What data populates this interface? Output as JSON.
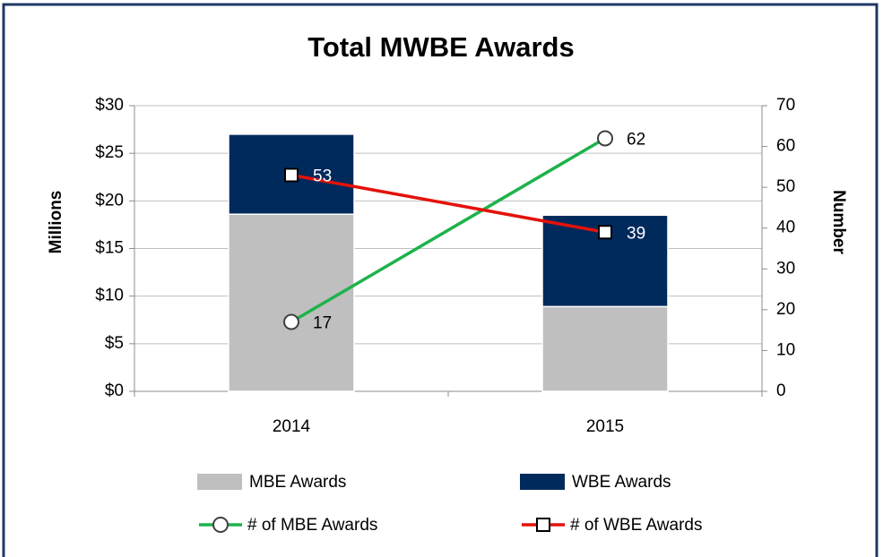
{
  "chart_data": {
    "type": "combo",
    "title": "Total MWBE Awards",
    "categories": [
      "2014",
      "2015"
    ],
    "stacked": true,
    "ylabel": "Millions",
    "y2label": "Number",
    "ylim": [
      0,
      30
    ],
    "yticks": [
      {
        "value": 0,
        "label": "$0"
      },
      {
        "value": 5,
        "label": "$5"
      },
      {
        "value": 10,
        "label": "$10"
      },
      {
        "value": 15,
        "label": "$15"
      },
      {
        "value": 20,
        "label": "$20"
      },
      {
        "value": 25,
        "label": "$25"
      },
      {
        "value": 30,
        "label": "$30"
      }
    ],
    "y2lim": [
      0,
      70
    ],
    "y2ticks": [
      0,
      10,
      20,
      30,
      40,
      50,
      60,
      70
    ],
    "grid": true,
    "legend": "bottom",
    "series": [
      {
        "name": "MBE Awards",
        "type": "bar",
        "color": "#bfbfbf",
        "values": [
          18.6,
          8.9
        ]
      },
      {
        "name": "WBE Awards",
        "type": "bar",
        "color": "#002a5c",
        "values": [
          8.4,
          9.6
        ]
      },
      {
        "name": "# of MBE Awards",
        "type": "line",
        "axis": "y2",
        "marker": "circle",
        "color": "#1db34a",
        "values": [
          17,
          62
        ]
      },
      {
        "name": "# of WBE Awards",
        "type": "line",
        "axis": "y2",
        "marker": "square",
        "color": "#e3120b",
        "values": [
          53,
          39
        ]
      }
    ]
  }
}
